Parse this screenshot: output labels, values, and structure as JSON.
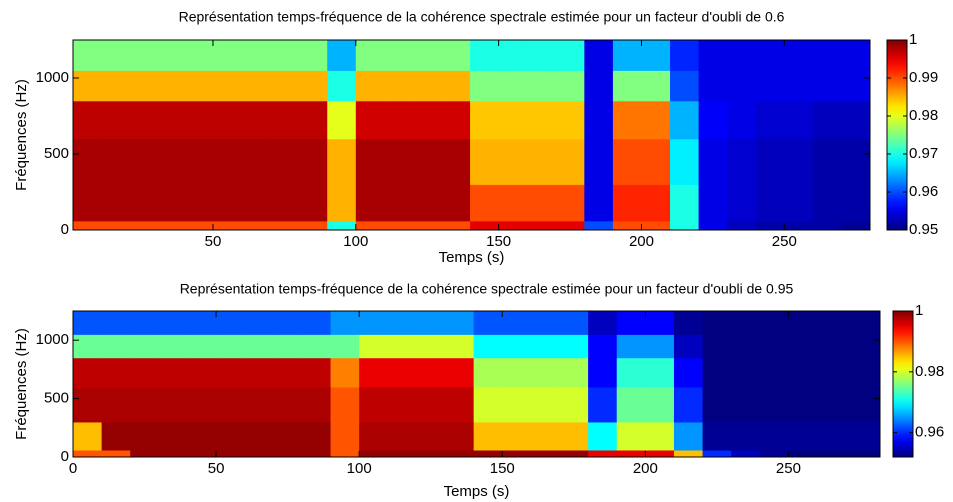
{
  "chart_data": [
    {
      "type": "heatmap",
      "title": "Représentation temps-fréquence de la cohérence spectrale estimée pour un facteur d'oubli de 0.6",
      "xlabel": "Temps (s)",
      "ylabel": "Fréquences (Hz)",
      "colormap": "jet",
      "xlim": [
        1,
        280
      ],
      "ylim": [
        0,
        1250
      ],
      "xticks": [
        50,
        100,
        150,
        200,
        250
      ],
      "yticks": [
        0,
        500,
        1000
      ],
      "clim": [
        0.95,
        1
      ],
      "cticks": [
        0.95,
        0.96,
        0.97,
        0.98,
        0.99,
        1
      ],
      "x": [
        1,
        10,
        20,
        30,
        40,
        50,
        60,
        70,
        80,
        90,
        100,
        110,
        120,
        130,
        140,
        150,
        160,
        170,
        180,
        190,
        200,
        210,
        220,
        230,
        240,
        250,
        260,
        270,
        280
      ],
      "y": [
        0,
        60,
        300,
        600,
        850,
        1050,
        1250
      ],
      "z": [
        [
          0.99,
          0.99,
          0.99,
          0.99,
          0.99,
          0.99,
          0.99,
          0.99,
          0.99,
          0.97,
          0.99,
          0.99,
          0.99,
          0.99,
          0.995,
          0.995,
          0.995,
          0.995,
          0.96,
          0.99,
          0.99,
          0.97,
          0.955,
          0.953,
          0.952,
          0.952,
          0.952,
          0.951
        ],
        [
          0.998,
          0.998,
          0.998,
          0.998,
          0.998,
          0.998,
          0.998,
          0.998,
          0.998,
          0.985,
          0.998,
          0.998,
          0.998,
          0.998,
          0.99,
          0.99,
          0.99,
          0.99,
          0.955,
          0.992,
          0.992,
          0.97,
          0.955,
          0.954,
          0.953,
          0.953,
          0.952,
          0.952
        ],
        [
          0.998,
          0.998,
          0.998,
          0.998,
          0.998,
          0.998,
          0.998,
          0.998,
          0.998,
          0.985,
          0.998,
          0.998,
          0.998,
          0.998,
          0.985,
          0.985,
          0.985,
          0.985,
          0.955,
          0.99,
          0.99,
          0.968,
          0.955,
          0.954,
          0.953,
          0.953,
          0.952,
          0.952
        ],
        [
          0.997,
          0.997,
          0.997,
          0.997,
          0.997,
          0.997,
          0.997,
          0.997,
          0.997,
          0.98,
          0.996,
          0.996,
          0.996,
          0.996,
          0.984,
          0.984,
          0.984,
          0.984,
          0.955,
          0.988,
          0.988,
          0.965,
          0.956,
          0.955,
          0.954,
          0.954,
          0.953,
          0.953
        ],
        [
          0.985,
          0.985,
          0.985,
          0.985,
          0.985,
          0.985,
          0.985,
          0.985,
          0.985,
          0.97,
          0.985,
          0.985,
          0.985,
          0.985,
          0.975,
          0.975,
          0.975,
          0.975,
          0.955,
          0.975,
          0.975,
          0.96,
          0.955,
          0.955,
          0.955,
          0.955,
          0.955,
          0.955
        ],
        [
          0.975,
          0.975,
          0.975,
          0.975,
          0.975,
          0.975,
          0.975,
          0.975,
          0.975,
          0.965,
          0.975,
          0.975,
          0.975,
          0.975,
          0.97,
          0.97,
          0.97,
          0.97,
          0.955,
          0.965,
          0.965,
          0.958,
          0.955,
          0.955,
          0.955,
          0.955,
          0.955,
          0.955
        ]
      ]
    },
    {
      "type": "heatmap",
      "title": "Représentation temps-fréquence de la cohérence spectrale estimée pour un facteur d'oubli de 0.95",
      "xlabel": "Temps (s)",
      "ylabel": "Fréquences (Hz)",
      "colormap": "jet",
      "xlim": [
        0,
        282
      ],
      "ylim": [
        0,
        1250
      ],
      "xticks": [
        0,
        50,
        100,
        150,
        200,
        250
      ],
      "yticks": [
        0,
        500,
        1000
      ],
      "clim": [
        0.952,
        1
      ],
      "cticks": [
        0.96,
        0.98,
        1
      ],
      "x": [
        0,
        10,
        20,
        30,
        40,
        50,
        60,
        70,
        80,
        90,
        100,
        110,
        120,
        130,
        140,
        150,
        160,
        170,
        180,
        190,
        200,
        210,
        220,
        230,
        240,
        250,
        260,
        270,
        282
      ],
      "y": [
        0,
        60,
        300,
        600,
        850,
        1050,
        1250
      ],
      "z": [
        [
          0.99,
          0.99,
          0.999,
          0.999,
          0.999,
          0.999,
          0.999,
          0.999,
          0.999,
          0.99,
          0.999,
          0.999,
          0.999,
          0.999,
          0.999,
          0.999,
          0.999,
          0.999,
          0.995,
          0.995,
          0.995,
          0.985,
          0.96,
          0.955,
          0.953,
          0.952,
          0.952,
          0.952
        ],
        [
          0.985,
          0.999,
          0.999,
          0.999,
          0.999,
          0.999,
          0.999,
          0.999,
          0.999,
          0.99,
          0.998,
          0.998,
          0.998,
          0.998,
          0.985,
          0.985,
          0.985,
          0.985,
          0.97,
          0.98,
          0.98,
          0.965,
          0.953,
          0.953,
          0.953,
          0.953,
          0.953,
          0.953
        ],
        [
          0.998,
          0.998,
          0.998,
          0.998,
          0.998,
          0.998,
          0.998,
          0.998,
          0.998,
          0.99,
          0.997,
          0.997,
          0.997,
          0.997,
          0.98,
          0.98,
          0.98,
          0.98,
          0.96,
          0.975,
          0.975,
          0.96,
          0.952,
          0.952,
          0.952,
          0.952,
          0.952,
          0.952
        ],
        [
          0.997,
          0.997,
          0.997,
          0.997,
          0.997,
          0.997,
          0.997,
          0.997,
          0.997,
          0.988,
          0.995,
          0.995,
          0.995,
          0.995,
          0.978,
          0.978,
          0.978,
          0.978,
          0.958,
          0.972,
          0.972,
          0.958,
          0.952,
          0.952,
          0.952,
          0.952,
          0.952,
          0.952
        ],
        [
          0.975,
          0.975,
          0.975,
          0.975,
          0.975,
          0.975,
          0.975,
          0.975,
          0.975,
          0.975,
          0.98,
          0.98,
          0.98,
          0.98,
          0.97,
          0.97,
          0.97,
          0.97,
          0.958,
          0.965,
          0.965,
          0.955,
          0.952,
          0.952,
          0.952,
          0.952,
          0.952,
          0.952
        ],
        [
          0.962,
          0.962,
          0.962,
          0.962,
          0.962,
          0.962,
          0.962,
          0.962,
          0.962,
          0.965,
          0.965,
          0.965,
          0.965,
          0.965,
          0.962,
          0.962,
          0.962,
          0.962,
          0.955,
          0.958,
          0.958,
          0.953,
          0.952,
          0.952,
          0.952,
          0.952,
          0.952,
          0.952
        ]
      ]
    }
  ]
}
